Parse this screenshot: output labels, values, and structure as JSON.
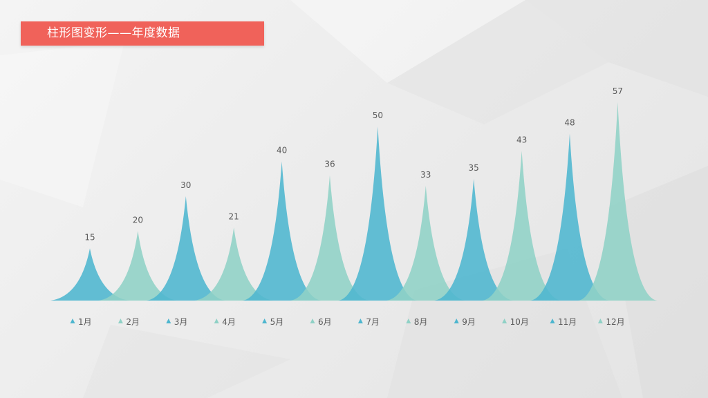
{
  "title": "柱形图变形——年度数据",
  "colors": {
    "series_a": "#4db6cf",
    "series_b": "#8fd1c6",
    "banner": "#f0625a"
  },
  "chart_data": {
    "type": "bar",
    "shape": "triangle-peaks",
    "categories": [
      "1月",
      "2月",
      "3月",
      "4月",
      "5月",
      "6月",
      "7月",
      "8月",
      "9月",
      "10月",
      "11月",
      "12月"
    ],
    "values": [
      15,
      20,
      30,
      21,
      40,
      36,
      50,
      33,
      35,
      43,
      48,
      57
    ],
    "title": "柱形图变形——年度数据",
    "xlabel": "",
    "ylabel": "",
    "ylim": [
      0,
      57
    ],
    "grid": false,
    "data_labels": true,
    "legend": "bottom"
  }
}
